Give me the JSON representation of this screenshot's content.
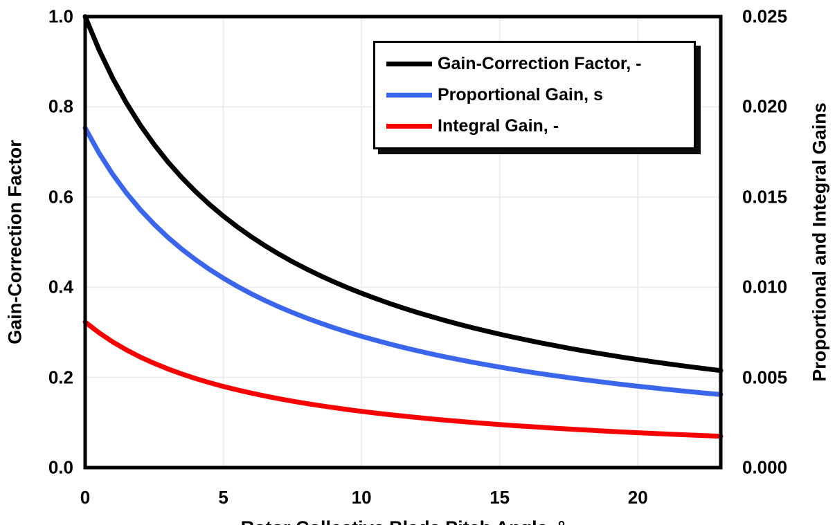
{
  "colors": {
    "background": "#ffffff",
    "border_and_text": "#000000",
    "gridline": "#ededed",
    "series_black": "#000000",
    "series_blue": "#3A66EB",
    "series_red": "#F80000",
    "legend_shadow": "#0d0d0d"
  },
  "chart_data": {
    "type": "line",
    "title": "",
    "xlabel": "Rotor Collective Blade Pitch Angle, °",
    "ylabel_left": "Gain-Correction Factor",
    "ylabel_right": "Proportional and Integral Gains",
    "grid": true,
    "legend_position": "top-right-inside",
    "x_range": [
      0,
      23
    ],
    "y_left_range": [
      0,
      1
    ],
    "y_right_range": [
      0,
      0.025
    ],
    "x_tick_labels": [
      "0",
      "5",
      "10",
      "15",
      "20"
    ],
    "y_left_tick_labels": [
      "1.0",
      "0.8",
      "0.6",
      "0.4",
      "0.2",
      "0.0"
    ],
    "y_right_tick_labels": [
      "0.025",
      "0.020",
      "0.015",
      "0.010",
      "0.005",
      "0.000"
    ],
    "x": [
      0,
      0.5,
      1,
      1.5,
      2,
      2.5,
      3,
      3.5,
      4,
      4.5,
      5,
      5.5,
      6,
      6.5,
      7,
      7.5,
      8,
      8.5,
      9,
      9.5,
      10,
      10.5,
      11,
      11.5,
      12,
      12.5,
      13,
      13.5,
      14,
      14.5,
      15,
      15.5,
      16,
      16.5,
      17,
      17.5,
      18,
      18.5,
      19,
      19.5,
      20,
      20.5,
      21,
      21.5,
      22,
      22.5,
      23
    ],
    "series": [
      {
        "name": "Gain-Correction Factor, -",
        "color": "#000000",
        "axis": "left",
        "values": [
          1,
          0.9265,
          0.8631,
          0.8077,
          0.7591,
          0.716,
          0.6775,
          0.6429,
          0.6117,
          0.5834,
          0.5576,
          0.534,
          0.5123,
          0.4923,
          0.4738,
          0.4566,
          0.4406,
          0.4258,
          0.4119,
          0.3988,
          0.3866,
          0.3751,
          0.3642,
          0.354,
          0.3443,
          0.3352,
          0.3265,
          0.3183,
          0.3104,
          0.303,
          0.2959,
          0.2891,
          0.2826,
          0.2764,
          0.2705,
          0.2648,
          0.2593,
          0.2541,
          0.2491,
          0.2442,
          0.2396,
          0.2351,
          0.2308,
          0.2267,
          0.2227,
          0.2188,
          0.2151
        ]
      },
      {
        "name": "Proportional Gain, s",
        "color": "#3A66EB",
        "axis": "right",
        "values": [
          0.018827,
          0.017443,
          0.016249,
          0.015207,
          0.014291,
          0.01348,
          0.012755,
          0.012104,
          0.011517,
          0.010984,
          0.010498,
          0.010053,
          0.009645,
          0.009268,
          0.00892,
          0.008596,
          0.008296,
          0.008016,
          0.007754,
          0.007509,
          0.007278,
          0.007062,
          0.006858,
          0.006665,
          0.006483,
          0.006311,
          0.006147,
          0.005992,
          0.005844,
          0.005704,
          0.00557,
          0.005442,
          0.00532,
          0.005204,
          0.005092,
          0.004985,
          0.004882,
          0.004784,
          0.004689,
          0.004598,
          0.004511,
          0.004427,
          0.004346,
          0.004268,
          0.004192,
          0.004119,
          0.004049
        ]
      },
      {
        "name": "Integral Gain, -",
        "color": "#F80000",
        "axis": "right",
        "values": [
          0.008069,
          0.007476,
          0.006964,
          0.006517,
          0.006125,
          0.005777,
          0.005467,
          0.005188,
          0.004936,
          0.004707,
          0.004499,
          0.004309,
          0.004134,
          0.003972,
          0.003823,
          0.003684,
          0.003555,
          0.003435,
          0.003323,
          0.003218,
          0.003119,
          0.003026,
          0.002939,
          0.002857,
          0.002778,
          0.002705,
          0.002634,
          0.002568,
          0.002505,
          0.002444,
          0.002387,
          0.002332,
          0.00228,
          0.00223,
          0.002182,
          0.002136,
          0.002092,
          0.00205,
          0.00201,
          0.001971,
          0.001933,
          0.001897,
          0.001862,
          0.001829,
          0.001797,
          0.001766,
          0.001735
        ]
      }
    ]
  }
}
